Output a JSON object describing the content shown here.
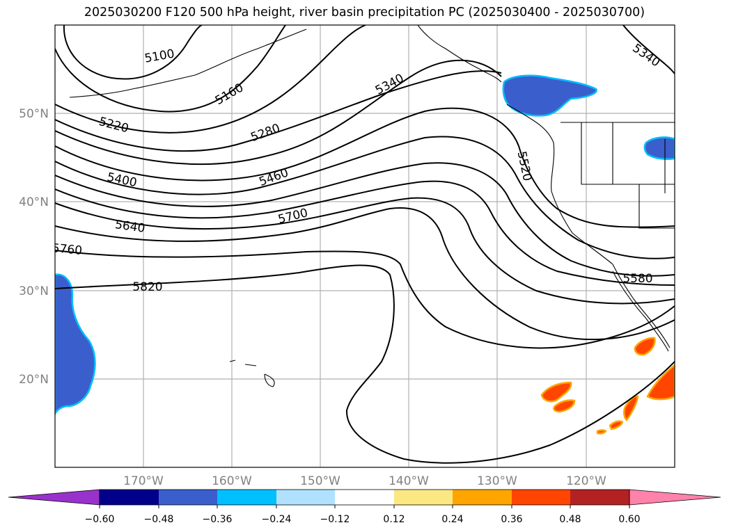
{
  "title": "2025030200 F120 500 hPa height, river basin precipitation PC (2025030400 - 2025030700)",
  "map": {
    "projection": "PlateCarree",
    "extent": {
      "lon_min": -180,
      "lon_max": -110,
      "lat_min": 10,
      "lat_max": 60
    },
    "gridlines": true,
    "lat_ticks": [
      {
        "lat": 50,
        "label": "50°N"
      },
      {
        "lat": 40,
        "label": "40°N"
      },
      {
        "lat": 30,
        "label": "30°N"
      },
      {
        "lat": 20,
        "label": "20°N"
      }
    ],
    "lon_ticks": [
      {
        "lon": -170,
        "label": "170°W"
      },
      {
        "lon": -160,
        "label": "160°W"
      },
      {
        "lon": -150,
        "label": "150°W"
      },
      {
        "lon": -140,
        "label": "140°W"
      },
      {
        "lon": -130,
        "label": "130°W"
      },
      {
        "lon": -120,
        "label": "120°W"
      }
    ],
    "contour_variable": "500 hPa height",
    "contour_labels": [
      "5100",
      "5160",
      "5220",
      "5280",
      "5340",
      "5340",
      "5400",
      "5460",
      "5520",
      "5580",
      "5640",
      "5700",
      "5760",
      "5820"
    ],
    "fill_variable": "river basin precipitation PC"
  },
  "colorbar": {
    "extend": "both",
    "colors": [
      "#9932cc",
      "#00008b",
      "#3a5fcd",
      "#00bfff",
      "#b0e2ff",
      "#ffffff",
      "#fce883",
      "#ffa500",
      "#ff4500",
      "#b22222",
      "#ff82ab"
    ],
    "tick_labels": [
      "−0.60",
      "−0.48",
      "−0.36",
      "−0.24",
      "−0.12",
      "0.12",
      "0.24",
      "0.36",
      "0.48",
      "0.60"
    ]
  }
}
